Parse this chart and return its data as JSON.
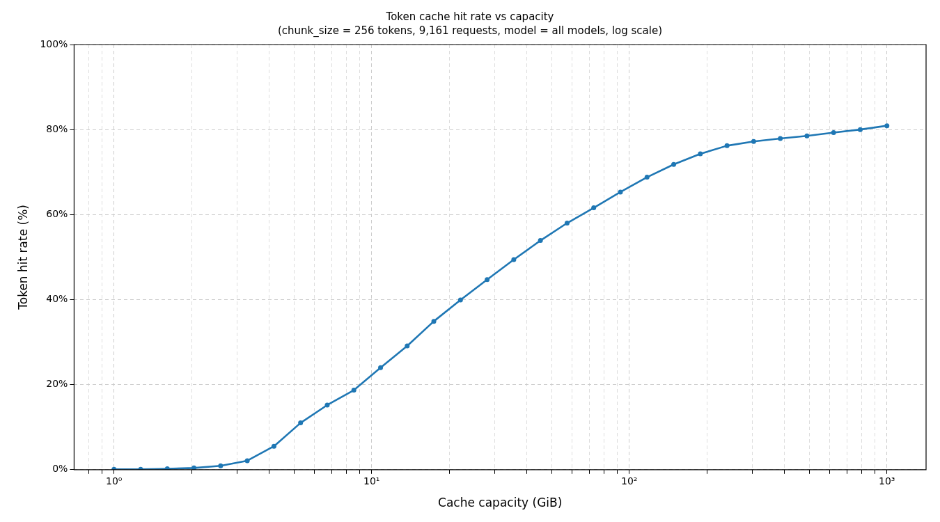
{
  "chart_data": {
    "type": "line",
    "title": "Token cache hit rate vs capacity",
    "subtitle": "(chunk_size = 256 tokens, 9,161 requests, model = all models, log scale)",
    "xlabel": "Cache capacity (GiB)",
    "ylabel": "Token hit rate (%)",
    "x": [
      1,
      1.269,
      1.61,
      2.043,
      2.593,
      3.29,
      4.175,
      5.298,
      6.723,
      8.531,
      10.83,
      13.74,
      17.43,
      22.12,
      28.07,
      35.62,
      45.2,
      57.36,
      72.78,
      92.36,
      117.2,
      148.7,
      188.7,
      239.5,
      303.9,
      385.6,
      489.3,
      620.9,
      787.9,
      1000
    ],
    "series": [
      {
        "color": "#1f77b4",
        "values": [
          0.1,
          0.1,
          0.2,
          0.4,
          0.9,
          2.1,
          5.5,
          11.0,
          15.2,
          18.7,
          24.0,
          29.1,
          34.9,
          39.9,
          44.7,
          49.4,
          53.9,
          58.0,
          61.6,
          65.3,
          68.8,
          71.8,
          74.3,
          76.2,
          77.2,
          77.9,
          78.5,
          79.3,
          80.0,
          80.9
        ]
      }
    ],
    "log": "x",
    "xlim": [
      0.71,
      1419
    ],
    "ylim": [
      0,
      100
    ],
    "xticks": [
      {
        "value": 0.8,
        "label": null
      },
      {
        "value": 0.9,
        "label": null
      },
      {
        "value": 1,
        "label": "10⁰"
      },
      {
        "value": 2,
        "label": null
      },
      {
        "value": 3,
        "label": null
      },
      {
        "value": 4,
        "label": null
      },
      {
        "value": 5,
        "label": null
      },
      {
        "value": 6,
        "label": null
      },
      {
        "value": 7,
        "label": null
      },
      {
        "value": 8,
        "label": null
      },
      {
        "value": 9,
        "label": null
      },
      {
        "value": 10,
        "label": "10¹"
      },
      {
        "value": 20,
        "label": null
      },
      {
        "value": 30,
        "label": null
      },
      {
        "value": 40,
        "label": null
      },
      {
        "value": 50,
        "label": null
      },
      {
        "value": 60,
        "label": null
      },
      {
        "value": 70,
        "label": null
      },
      {
        "value": 80,
        "label": null
      },
      {
        "value": 90,
        "label": null
      },
      {
        "value": 100,
        "label": "10²"
      },
      {
        "value": 200,
        "label": null
      },
      {
        "value": 300,
        "label": null
      },
      {
        "value": 400,
        "label": null
      },
      {
        "value": 500,
        "label": null
      },
      {
        "value": 600,
        "label": null
      },
      {
        "value": 700,
        "label": null
      },
      {
        "value": 800,
        "label": null
      },
      {
        "value": 900,
        "label": null
      },
      {
        "value": 1000,
        "label": "10³"
      }
    ],
    "yticks": [
      {
        "value": 0,
        "label": "0%"
      },
      {
        "value": 20,
        "label": "20%"
      },
      {
        "value": 40,
        "label": "40%"
      },
      {
        "value": 60,
        "label": "60%"
      },
      {
        "value": 80,
        "label": "80%"
      },
      {
        "value": 100,
        "label": "100%"
      }
    ],
    "grid": true,
    "marker": "circle",
    "line_style": "solid",
    "legend": false
  }
}
